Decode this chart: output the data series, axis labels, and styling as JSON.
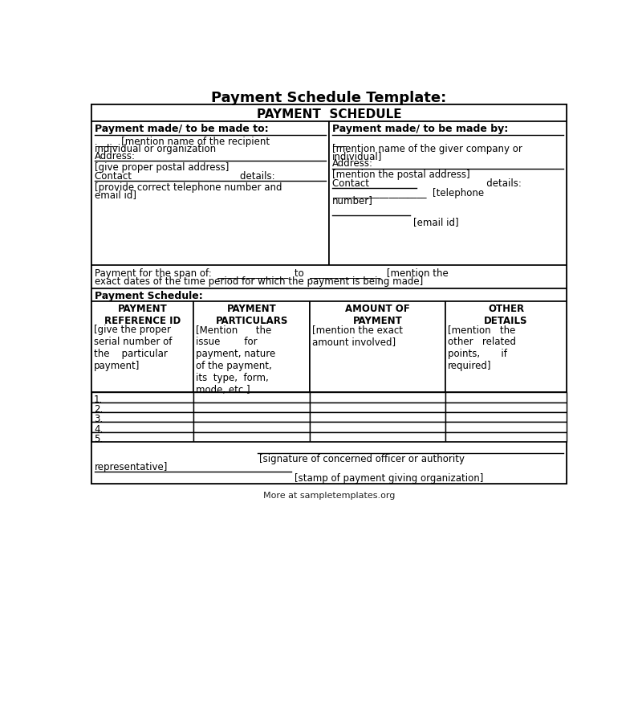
{
  "title": "Payment Schedule Template:",
  "header": "PAYMENT  SCHEDULE",
  "bg_color": "#ffffff",
  "border_color": "#000000",
  "left_col_label": "Payment made/ to be made to:",
  "right_col_label": "Payment made/ to be made by:",
  "span_row_line1": "Payment for the span of:  _______________  to  _______________  [mention the",
  "span_row_line2": "exact dates of the time period for which the payment is being made]",
  "schedule_label": "Payment Schedule:",
  "col_headers": [
    "PAYMENT\nREFERENCE ID",
    "PAYMENT\nPARTICULARS",
    "AMOUNT OF\nPAYMENT",
    "OTHER\nDETAILS"
  ],
  "num_rows": 5,
  "watermark": "More at sampletemplates.org"
}
